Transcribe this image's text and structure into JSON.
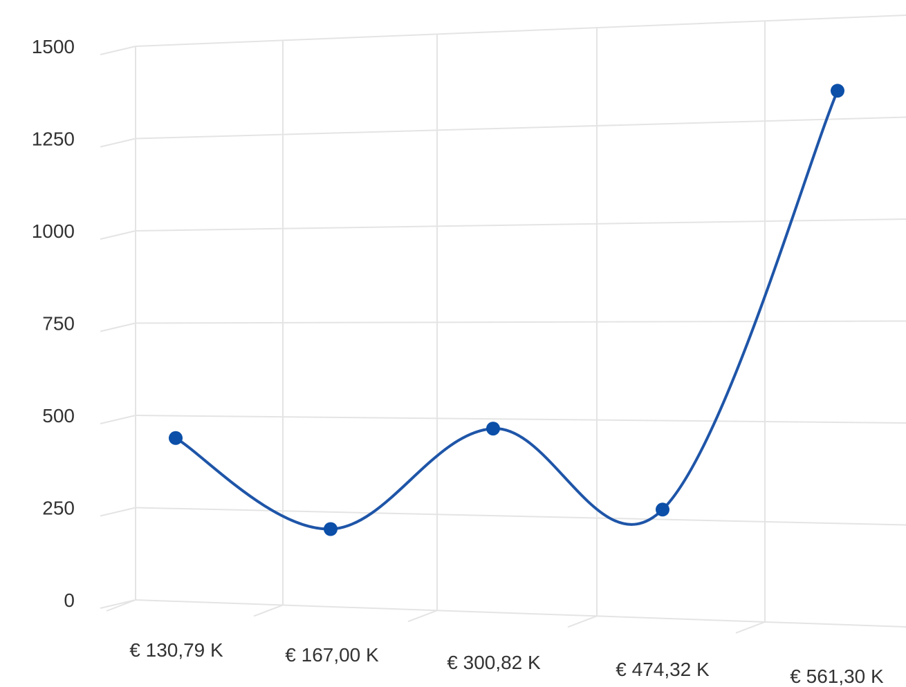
{
  "chart_data": {
    "type": "line",
    "title": "",
    "xlabel": "",
    "ylabel": "",
    "categories": [
      "€ 130,79 K",
      "€ 167,00 K",
      "€ 300,82 K",
      "€ 474,32 K",
      "€ 561,30 K"
    ],
    "series": [
      {
        "values": [
          440,
          205,
          475,
          275,
          1320
        ],
        "color": "#1e55a8"
      }
    ],
    "y_ticks": [
      "0",
      "250",
      "500",
      "750",
      "1000",
      "1250",
      "1500"
    ],
    "ylim": [
      0,
      1500
    ],
    "grid": true,
    "smooth": true,
    "legend": "none",
    "perspective": "3d"
  }
}
